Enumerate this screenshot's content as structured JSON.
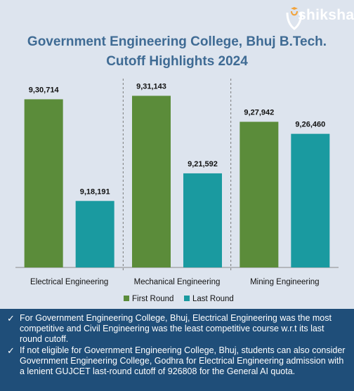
{
  "brand": {
    "name": "shiksha"
  },
  "title_lines": [
    "Government Engineering College, Bhuj B.Tech.",
    "Cutoff Highlights 2024"
  ],
  "colors": {
    "first_round": "#5b8c3a",
    "last_round": "#1a9aa0",
    "title": "#3f6b94",
    "footer_bg": "#1f4e79",
    "background": "#dde4ee"
  },
  "chart_data": {
    "type": "bar",
    "title": "Government Engineering College, Bhuj B.Tech. Cutoff Highlights 2024",
    "categories": [
      "Electrical Engineering",
      "Mechanical Engineering",
      "Mining Engineering"
    ],
    "series": [
      {
        "name": "First Round",
        "values": [
          930714,
          931143,
          927942
        ],
        "labels": [
          "9,30,714",
          "9,31,143",
          "9,27,942"
        ],
        "color": "#5b8c3a"
      },
      {
        "name": "Last Round",
        "values": [
          918191,
          921592,
          926460
        ],
        "labels": [
          "9,18,191",
          "9,21,592",
          "9,26,460"
        ],
        "color": "#1a9aa0"
      }
    ],
    "ylim": [
      910000,
      933000
    ],
    "grid": false,
    "legend": "bottom"
  },
  "notes": [
    "For Government Engineering College, Bhuj, Electrical Engineering was the most competitive and Civil Engineering was the least competitive course w.r.t its last round cutoff.",
    "If not eligible for Government Engineering College, Bhuj, students can also consider Government Engineering College, Godhra for Electrical Engineering admission with a lenient GUJCET last-round cutoff of 926808 for the General AI quota."
  ],
  "note_marker": "✓"
}
